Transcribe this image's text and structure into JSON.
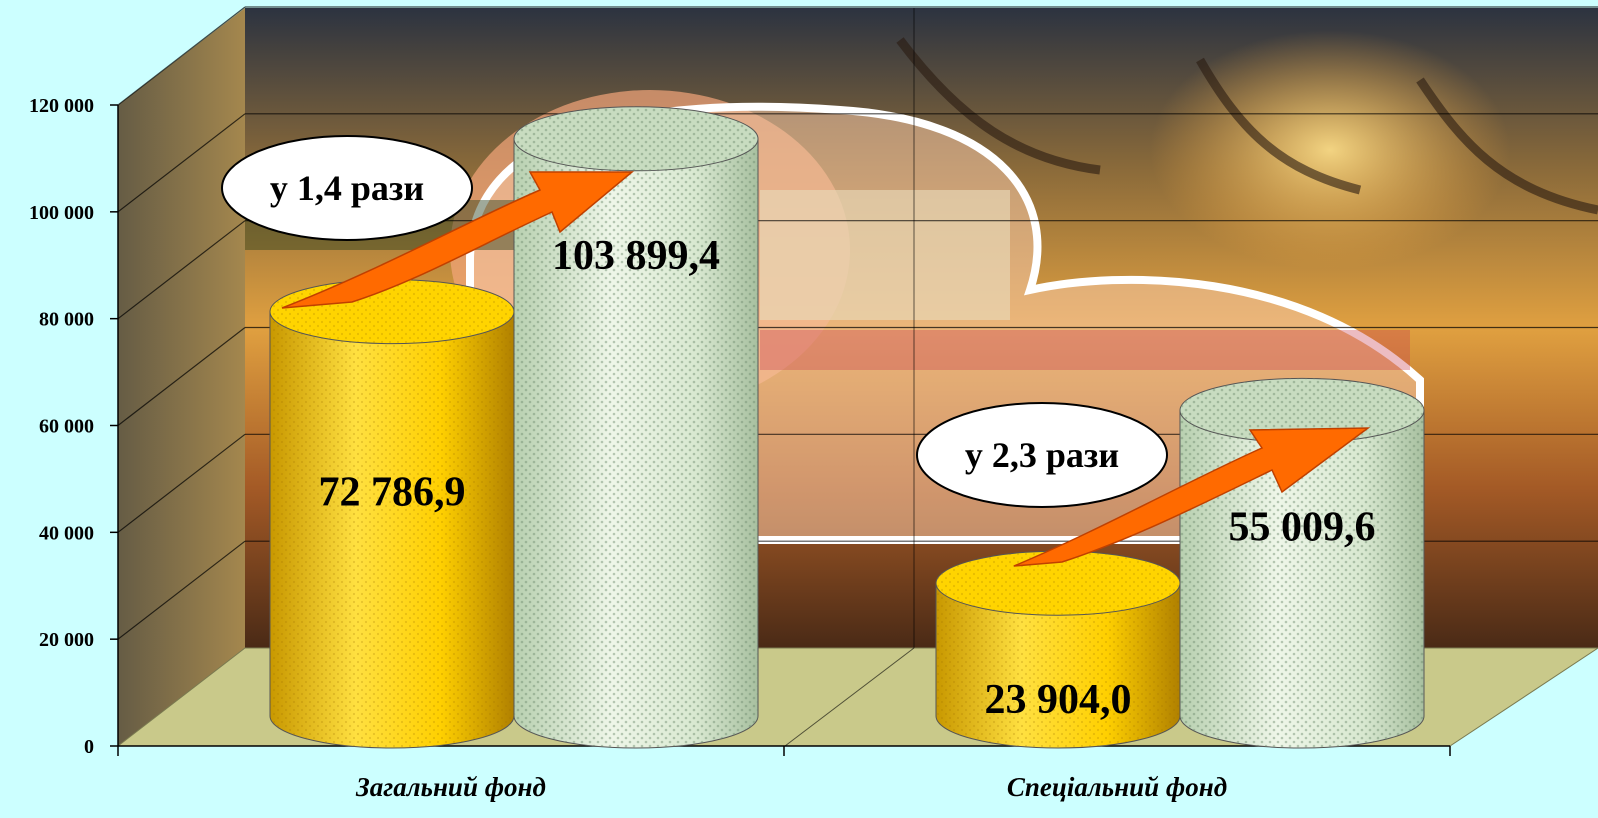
{
  "chart_data": {
    "type": "bar",
    "categories": [
      "Загальний фонд",
      "Спеціальний фонд"
    ],
    "series": [
      {
        "values": [
          72786.9,
          23904.0
        ]
      },
      {
        "values": [
          103899.4,
          55009.6
        ]
      }
    ],
    "value_labels": [
      [
        "72 786,9",
        "23 904,0"
      ],
      [
        "103 899,4",
        "55 009,6"
      ]
    ],
    "ratio_labels": [
      "у 1,4 рази",
      "у 2,3 рази"
    ],
    "yticks": [
      0,
      20000,
      40000,
      60000,
      80000,
      100000,
      120000
    ],
    "ytick_labels": [
      "0",
      "20 000",
      "40 000",
      "60 000",
      "80 000",
      "100 000",
      "120 000"
    ],
    "ylim": [
      0,
      120000
    ],
    "grid": true,
    "colors": {
      "series_1": "#ffd400",
      "series_2": "#d4e8c8",
      "arrow": "#ff6a00",
      "floor": "#c9c98a",
      "background": "#ccffff"
    }
  }
}
